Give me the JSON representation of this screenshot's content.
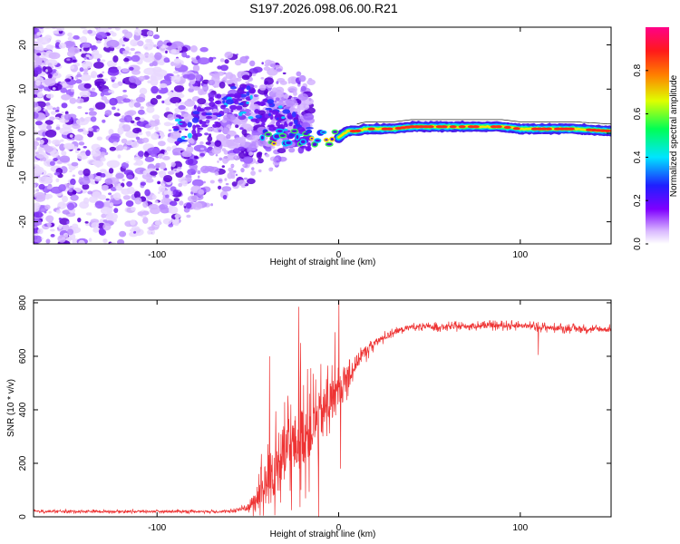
{
  "title": "S197.2026.098.06.00.R21",
  "chart_data": [
    {
      "type": "heatmap",
      "name": "spectrogram",
      "xlabel": "Height of straight line (km)",
      "ylabel": "Frequency (Hz)",
      "xlim": [
        -168,
        150
      ],
      "ylim": [
        -25,
        24
      ],
      "xticks": [
        -100,
        0,
        100
      ],
      "yticks": [
        -20,
        -10,
        0,
        10,
        20
      ],
      "xtick_labels": [
        "-100",
        "0",
        "100"
      ],
      "ytick_labels": [
        "-20",
        "-10",
        "0",
        "10",
        "20"
      ],
      "colorbar": {
        "label": "Normalized spectral amplitude",
        "range": [
          0.0,
          1.0
        ],
        "ticks": [
          0.0,
          0.2,
          0.4,
          0.6,
          0.8
        ],
        "tick_labels": [
          "0.0",
          "0.2",
          "0.4",
          "0.6",
          "0.8"
        ],
        "colormap": "rainbow (white-violet-blue-cyan-green-yellow-red-magenta)"
      },
      "carrier_line": [
        [
          -2,
          -1.5
        ],
        [
          5,
          0.5
        ],
        [
          10,
          0.5
        ],
        [
          15,
          1.0
        ],
        [
          30,
          1.0
        ],
        [
          40,
          1.5
        ],
        [
          60,
          1.5
        ],
        [
          75,
          1.5
        ],
        [
          90,
          1.5
        ],
        [
          100,
          1.0
        ],
        [
          110,
          1.0
        ],
        [
          130,
          1.0
        ],
        [
          150,
          0.5
        ]
      ],
      "scatter_region_x": [
        -168,
        -15
      ]
    },
    {
      "type": "line",
      "name": "snr",
      "xlabel": "Height of straight line (km)",
      "ylabel": "SNR (10 * v/v)",
      "xlim": [
        -168,
        150
      ],
      "ylim": [
        0,
        810
      ],
      "xticks": [
        -100,
        0,
        100
      ],
      "yticks": [
        0,
        200,
        400,
        600,
        800
      ],
      "xtick_labels": [
        "-100",
        "0",
        "100"
      ],
      "ytick_labels": [
        "0",
        "200",
        "400",
        "600",
        "800"
      ],
      "color": "#ee3333",
      "envelope": {
        "x": [
          -168,
          -60,
          -50,
          -45,
          -40,
          -35,
          -30,
          -25,
          -20,
          -15,
          -10,
          -5,
          0,
          5,
          10,
          15,
          20,
          25,
          30,
          40,
          60,
          80,
          100,
          120,
          150
        ],
        "y": [
          20,
          20,
          35,
          70,
          120,
          180,
          230,
          260,
          300,
          330,
          380,
          430,
          460,
          520,
          580,
          620,
          650,
          670,
          690,
          710,
          710,
          715,
          715,
          705,
          700
        ]
      },
      "noise_amplitude": {
        "x": [
          -168,
          -60,
          -50,
          -45,
          -40,
          -30,
          -20,
          -10,
          0,
          10,
          20,
          30,
          150
        ],
        "y": [
          8,
          8,
          30,
          100,
          200,
          250,
          260,
          200,
          150,
          60,
          30,
          20,
          20
        ]
      },
      "spikes": [
        {
          "x": 0.2,
          "y": 810
        },
        {
          "x": -2,
          "y": 690
        },
        {
          "x": -22,
          "y": 785
        },
        {
          "x": -21,
          "y": 650
        },
        {
          "x": -38,
          "y": 600
        },
        {
          "x": 1,
          "y": 180
        },
        {
          "x": -11,
          "y": 0
        },
        {
          "x": 110,
          "y": 605
        }
      ]
    }
  ]
}
